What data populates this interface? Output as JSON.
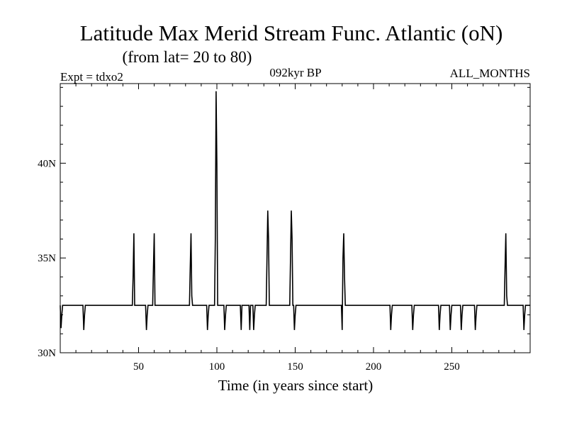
{
  "chart_data": {
    "type": "line",
    "title": "Latitude Max Merid Stream Func. Atlantic (oN)",
    "subtitle": "(from lat= 20 to 80)",
    "header_left": "Expt = tdxo2",
    "header_center": "092kyr BP",
    "header_right": "ALL_MONTHS",
    "xlabel": "Time (in years since start)",
    "ylabel": "",
    "xlim": [
      0,
      300
    ],
    "ylim": [
      30,
      44.2
    ],
    "xticks": [
      50,
      100,
      150,
      200,
      250
    ],
    "xtick_labels": [
      "50",
      "100",
      "150",
      "200",
      "250"
    ],
    "yticks": [
      30,
      35,
      40
    ],
    "ytick_labels": [
      "30N",
      "35N",
      "40N"
    ],
    "grid": false,
    "line_color": "#000000",
    "series": [
      {
        "x": [
          0,
          0.5,
          1,
          1.5,
          2,
          14.5,
          15,
          15.5,
          16,
          46,
          46.5,
          47,
          47.5,
          48,
          54.5,
          55,
          55.5,
          56,
          59,
          59.5,
          60,
          60.5,
          61,
          82.5,
          83,
          83.5,
          84,
          84.5,
          93.5,
          94,
          94.5,
          95,
          98.5,
          99,
          99.5,
          100,
          100.5,
          101,
          104.5,
          105,
          105.5,
          106,
          115,
          115.5,
          116,
          120.5,
          121,
          121.5,
          122,
          123,
          123.5,
          124,
          124.5,
          131.5,
          132,
          132.5,
          133,
          133.5,
          134,
          146.5,
          147,
          147.5,
          148,
          148.5,
          149,
          149.5,
          150,
          150.5,
          179.5,
          180,
          180.5,
          181,
          181.5,
          182,
          182.5,
          210.5,
          211,
          211.5,
          212,
          224.5,
          225,
          225.5,
          226,
          241.5,
          242,
          242.5,
          243,
          248.5,
          249,
          249.5,
          250,
          255.5,
          256,
          256.5,
          257,
          264.5,
          265,
          265.5,
          266,
          283.5,
          284,
          284.5,
          285,
          285.5,
          295.5,
          296,
          296.5,
          297,
          297.5,
          300
        ],
        "y": [
          32.5,
          31.3,
          32,
          32.5,
          32.5,
          32.5,
          31.2,
          32,
          32.5,
          32.5,
          34,
          36.3,
          32.5,
          32.5,
          32.5,
          31.2,
          32,
          32.5,
          32.5,
          34.5,
          36.3,
          32.5,
          32.5,
          32.5,
          34.5,
          36.3,
          33,
          32.5,
          32.5,
          31.2,
          32,
          32.5,
          32.5,
          36,
          43.8,
          40,
          32.5,
          32.5,
          32.5,
          31.2,
          32,
          32.5,
          32.5,
          31.2,
          32.5,
          32.5,
          31.2,
          32.5,
          32.5,
          32.5,
          31.2,
          32,
          32.5,
          32.5,
          35,
          37.5,
          36,
          32.5,
          32.5,
          32.5,
          35,
          37.5,
          36,
          32.5,
          32.5,
          31.2,
          32,
          32.5,
          32.5,
          31.2,
          35,
          36.3,
          34,
          32.5,
          32.5,
          32.5,
          31.2,
          32,
          32.5,
          32.5,
          31.2,
          32,
          32.5,
          32.5,
          31.2,
          32,
          32.5,
          32.5,
          31.2,
          32,
          32.5,
          32.5,
          31.2,
          32,
          32.5,
          32.5,
          31.2,
          32,
          32.5,
          32.5,
          34.5,
          36.3,
          33,
          32.5,
          32.5,
          31.2,
          32,
          32.5,
          32.5,
          32.5
        ]
      }
    ]
  }
}
